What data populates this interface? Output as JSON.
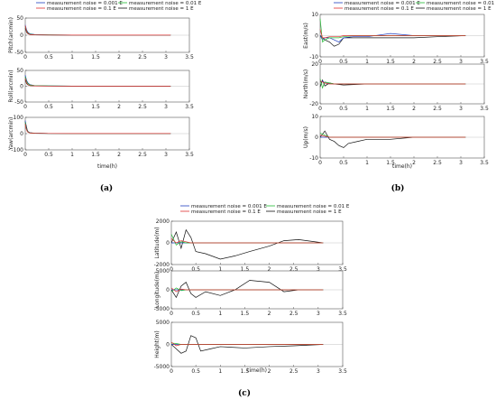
{
  "figure": {
    "legend_entries": [
      {
        "name": "measurement noise = 0.001 E",
        "color": "#1f3fbf"
      },
      {
        "name": "measurement noise = 0.01 E",
        "color": "#22bb33"
      },
      {
        "name": "measurement noise = 0.1 E",
        "color": "#e03030"
      },
      {
        "name": "measurement noise = 1 E",
        "color": "#111111"
      }
    ],
    "series_colors": [
      "#1f3fbf",
      "#22bb33",
      "#e03030",
      "#111111"
    ]
  },
  "chart_data": [
    {
      "type": "line",
      "panel": "(a)",
      "caption": "(a)",
      "legend_placement": "top",
      "xlabel": "time(h)",
      "xlim": [
        0,
        3.5
      ],
      "xticks": [
        "0",
        "0.5",
        "1",
        "1.5",
        "2",
        "2.5",
        "3",
        "3.5"
      ],
      "subplots": [
        {
          "ylabel": "Pitch(arcmin)",
          "ylim": [
            -50,
            50
          ],
          "yticks": [
            "-50",
            "0",
            "50"
          ],
          "x": [
            0,
            0.03,
            0.06,
            0.1,
            0.2,
            0.5,
            1,
            2,
            3.1
          ],
          "series": [
            {
              "values": [
                30,
                15,
                8,
                4,
                2,
                1,
                0.5,
                0.5,
                0.5
              ]
            },
            {
              "values": [
                25,
                12,
                6,
                3,
                1.5,
                1,
                0.5,
                0.5,
                0.5
              ]
            },
            {
              "values": [
                28,
                10,
                5,
                2,
                1,
                0.5,
                0.3,
                0.3,
                0.3
              ]
            },
            {
              "values": [
                20,
                8,
                4,
                2,
                1,
                0.5,
                0.3,
                0.3,
                0.3
              ]
            }
          ]
        },
        {
          "ylabel": "Roll(arcmin)",
          "ylim": [
            -50,
            50
          ],
          "yticks": [
            "-50",
            "0",
            "50"
          ],
          "x": [
            0,
            0.03,
            0.06,
            0.1,
            0.2,
            0.5,
            1,
            2,
            3.1
          ],
          "series": [
            {
              "values": [
                35,
                18,
                10,
                5,
                2,
                1,
                0.5,
                0.5,
                0.5
              ]
            },
            {
              "values": [
                30,
                14,
                8,
                4,
                2,
                1,
                0.5,
                0.5,
                0.5
              ]
            },
            {
              "values": [
                25,
                10,
                5,
                2,
                1,
                0.5,
                0.3,
                0.3,
                0.3
              ]
            },
            {
              "values": [
                20,
                8,
                4,
                2,
                1,
                0.5,
                0.3,
                0.3,
                0.3
              ]
            }
          ]
        },
        {
          "ylabel": "Yaw(arcmin)",
          "ylim": [
            -100,
            100
          ],
          "yticks": [
            "-100",
            "0",
            "100"
          ],
          "x": [
            0,
            0.02,
            0.04,
            0.06,
            0.1,
            0.2,
            0.5,
            1,
            2,
            3.1
          ],
          "series": [
            {
              "values": [
                80,
                40,
                20,
                10,
                5,
                2,
                1,
                0.5,
                0.5,
                0.5
              ]
            },
            {
              "values": [
                70,
                35,
                18,
                9,
                4,
                2,
                1,
                0.5,
                0.5,
                0.5
              ]
            },
            {
              "values": [
                60,
                30,
                15,
                8,
                4,
                2,
                1,
                0.5,
                0.5,
                0.5
              ]
            },
            {
              "values": [
                75,
                50,
                25,
                12,
                6,
                3,
                1,
                0.5,
                0.5,
                0.5
              ]
            }
          ]
        }
      ]
    },
    {
      "type": "line",
      "panel": "(b)",
      "caption": "(b)",
      "legend_placement": "top",
      "xlabel": "time(h)",
      "xlim": [
        0,
        3.5
      ],
      "xticks": [
        "0",
        "0.5",
        "1",
        "1.5",
        "2",
        "2.5",
        "3",
        "3.5"
      ],
      "subplots": [
        {
          "ylabel": "East(m/s)",
          "ylim": [
            -10,
            10
          ],
          "yticks": [
            "-10",
            "0",
            "10"
          ],
          "x": [
            0,
            0.05,
            0.1,
            0.2,
            0.3,
            0.4,
            0.5,
            0.7,
            1,
            1.5,
            2,
            2.5,
            3.1
          ],
          "series": [
            {
              "values": [
                0,
                -2,
                -1,
                -1,
                -2,
                -3,
                -1,
                -0.5,
                -0.5,
                1,
                0,
                0,
                0
              ]
            },
            {
              "values": [
                8,
                -3,
                -2,
                -1,
                -1,
                -1,
                -0.5,
                0,
                0,
                0,
                0,
                0,
                0
              ]
            },
            {
              "values": [
                3,
                -1,
                -1,
                -0.5,
                -0.5,
                -0.5,
                0,
                0,
                0,
                0,
                0,
                0,
                0
              ]
            },
            {
              "values": [
                0,
                -1,
                -2,
                -3,
                -5,
                -4,
                -1,
                -1,
                -1,
                -1,
                -1,
                -0.5,
                0
              ]
            }
          ]
        },
        {
          "ylabel": "North(m/s)",
          "ylim": [
            -20,
            20
          ],
          "yticks": [
            "-20",
            "0",
            "20"
          ],
          "x": [
            0,
            0.05,
            0.1,
            0.2,
            0.3,
            0.5,
            1,
            1.5,
            2,
            2.5,
            3.1
          ],
          "series": [
            {
              "values": [
                2,
                3,
                1,
                0.5,
                0,
                0,
                0,
                0,
                0,
                0,
                0
              ]
            },
            {
              "values": [
                5,
                -4,
                2,
                1,
                0,
                0,
                0,
                0,
                0,
                0,
                0
              ]
            },
            {
              "values": [
                3,
                2,
                1,
                0,
                0,
                0,
                0,
                0,
                0,
                0,
                0
              ]
            },
            {
              "values": [
                -3,
                4,
                -2,
                1,
                0,
                -1,
                0,
                0,
                0,
                0,
                0
              ]
            }
          ]
        },
        {
          "ylabel": "Up(m/s)",
          "ylim": [
            -10,
            10
          ],
          "yticks": [
            "-10",
            "0",
            "10"
          ],
          "x": [
            0,
            0.1,
            0.2,
            0.3,
            0.4,
            0.5,
            0.6,
            0.8,
            1,
            1.5,
            2,
            2.5,
            3.1
          ],
          "series": [
            {
              "values": [
                0,
                0,
                0,
                0,
                0,
                0,
                0,
                0,
                0,
                0,
                0,
                0,
                0
              ]
            },
            {
              "values": [
                2,
                1,
                0,
                0,
                0,
                0,
                0,
                0,
                0,
                0,
                0,
                0,
                0
              ]
            },
            {
              "values": [
                1,
                0.5,
                0,
                0,
                0,
                0,
                0,
                0,
                0,
                0,
                0,
                0,
                0
              ]
            },
            {
              "values": [
                0,
                3,
                -1,
                -2,
                -4,
                -5,
                -3,
                -2,
                -1,
                -1,
                0,
                0,
                0
              ]
            }
          ]
        }
      ]
    },
    {
      "type": "line",
      "panel": "(c)",
      "caption": "(c)",
      "legend_placement": "top",
      "xlabel": "time(h)",
      "xlim": [
        0,
        3.5
      ],
      "xticks": [
        "0",
        "0.5",
        "1",
        "1.5",
        "2",
        "2.5",
        "3",
        "3.5"
      ],
      "subplots": [
        {
          "ylabel": "Latitude(m)",
          "ylim": [
            -2000,
            2000
          ],
          "yticks": [
            "-2000",
            "0",
            "2000"
          ],
          "x": [
            0,
            0.1,
            0.2,
            0.3,
            0.4,
            0.5,
            0.7,
            1,
            1.3,
            1.6,
            2,
            2.3,
            2.6,
            3.1
          ],
          "series": [
            {
              "values": [
                0,
                0,
                0,
                0,
                0,
                0,
                0,
                0,
                0,
                0,
                0,
                0,
                0,
                0
              ]
            },
            {
              "values": [
                800,
                -200,
                100,
                0,
                0,
                0,
                0,
                0,
                0,
                0,
                0,
                0,
                0,
                0
              ]
            },
            {
              "values": [
                400,
                0,
                200,
                100,
                0,
                0,
                0,
                0,
                0,
                0,
                0,
                0,
                0,
                0
              ]
            },
            {
              "values": [
                0,
                1000,
                -500,
                1200,
                500,
                -800,
                -1000,
                -1500,
                -1200,
                -800,
                -300,
                200,
                300,
                0
              ]
            }
          ]
        },
        {
          "ylabel": "Longitude(m)",
          "ylim": [
            -5000,
            5000
          ],
          "yticks": [
            "-5000",
            "0",
            "5000"
          ],
          "x": [
            0,
            0.1,
            0.2,
            0.3,
            0.4,
            0.5,
            0.7,
            1,
            1.3,
            1.6,
            2,
            2.3,
            2.6,
            3.1
          ],
          "series": [
            {
              "values": [
                0,
                0,
                0,
                0,
                0,
                0,
                0,
                0,
                0,
                0,
                0,
                0,
                0,
                0
              ]
            },
            {
              "values": [
                -500,
                500,
                -200,
                0,
                0,
                0,
                0,
                0,
                0,
                0,
                0,
                0,
                0,
                0
              ]
            },
            {
              "values": [
                500,
                -500,
                200,
                0,
                0,
                0,
                0,
                0,
                0,
                0,
                0,
                0,
                0,
                0
              ]
            },
            {
              "values": [
                0,
                -2000,
                1000,
                2000,
                -1000,
                -2000,
                -500,
                -1500,
                0,
                2500,
                2000,
                -500,
                0,
                0
              ]
            }
          ]
        },
        {
          "ylabel": "Height(m)",
          "ylim": [
            -5000,
            5000
          ],
          "yticks": [
            "-5000",
            "0",
            "5000"
          ],
          "x": [
            0,
            0.1,
            0.2,
            0.3,
            0.4,
            0.5,
            0.6,
            0.8,
            1,
            1.5,
            2,
            2.5,
            3.1
          ],
          "series": [
            {
              "values": [
                0,
                0,
                0,
                0,
                0,
                0,
                0,
                0,
                0,
                0,
                0,
                0,
                0
              ]
            },
            {
              "values": [
                300,
                200,
                0,
                0,
                0,
                0,
                0,
                0,
                0,
                0,
                0,
                0,
                0
              ]
            },
            {
              "values": [
                500,
                -300,
                0,
                0,
                0,
                0,
                0,
                0,
                0,
                0,
                0,
                0,
                0
              ]
            },
            {
              "values": [
                0,
                -1000,
                -2000,
                -1500,
                2000,
                1500,
                -1500,
                -1000,
                -500,
                -800,
                -500,
                -300,
                0
              ]
            }
          ]
        }
      ]
    }
  ]
}
